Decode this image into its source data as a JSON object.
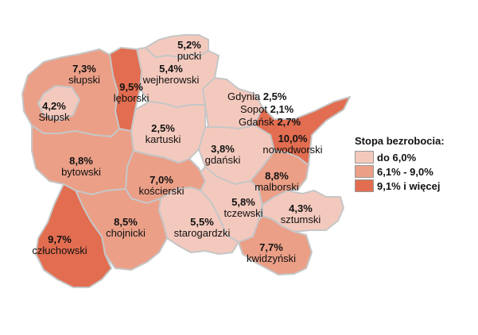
{
  "colors": {
    "low": "#f4c9bd",
    "mid": "#eb9f87",
    "high": "#e26d50",
    "border": "#c6c6c6"
  },
  "legend": {
    "title": "Stopa bezrobocia:",
    "items": [
      {
        "label": "do 6,0%",
        "color": "#f4c9bd"
      },
      {
        "label": "6,1% - 9,0%",
        "color": "#eb9f87"
      },
      {
        "label": "9,1% i więcej",
        "color": "#e26d50"
      }
    ]
  },
  "regions": {
    "pucki": {
      "name": "pucki",
      "value": "5,2%",
      "class": "low"
    },
    "slupski": {
      "name": "słupski",
      "value": "7,3%",
      "class": "mid"
    },
    "leborski": {
      "name": "lęborski",
      "value": "9,5%",
      "class": "high"
    },
    "wejherowski": {
      "name": "wejherowski",
      "value": "5,4%",
      "class": "low"
    },
    "slupsk": {
      "name": "Słupsk",
      "value": "4,2%",
      "class": "low"
    },
    "kartuski": {
      "name": "kartuski",
      "value": "2,5%",
      "class": "low"
    },
    "bytowski": {
      "name": "bytowski",
      "value": "8,8%",
      "class": "mid"
    },
    "nowodworski": {
      "name": "nowodworski",
      "value": "10,0%",
      "class": "high"
    },
    "gdanski": {
      "name": "gdański",
      "value": "3,8%",
      "class": "low"
    },
    "koscierski": {
      "name": "kościerski",
      "value": "7,0%",
      "class": "mid"
    },
    "malborski": {
      "name": "malborski",
      "value": "8,8%",
      "class": "mid"
    },
    "tczewski": {
      "name": "tczewski",
      "value": "5,8%",
      "class": "low"
    },
    "sztumski": {
      "name": "sztumski",
      "value": "4,3%",
      "class": "low"
    },
    "chojnicki": {
      "name": "chojnicki",
      "value": "8,5%",
      "class": "mid"
    },
    "starogardzki": {
      "name": "starogardzki",
      "value": "5,5%",
      "class": "low"
    },
    "czluchowski": {
      "name": "człuchowski",
      "value": "9,7%",
      "class": "high"
    },
    "kwidzynski": {
      "name": "kwidzyński",
      "value": "7,7%",
      "class": "mid"
    }
  },
  "tricity": [
    {
      "name": "Gdynia",
      "value": "2,5%"
    },
    {
      "name": "Sopot",
      "value": "2,1%"
    },
    {
      "name": "Gdańsk",
      "value": "2,7%"
    }
  ]
}
